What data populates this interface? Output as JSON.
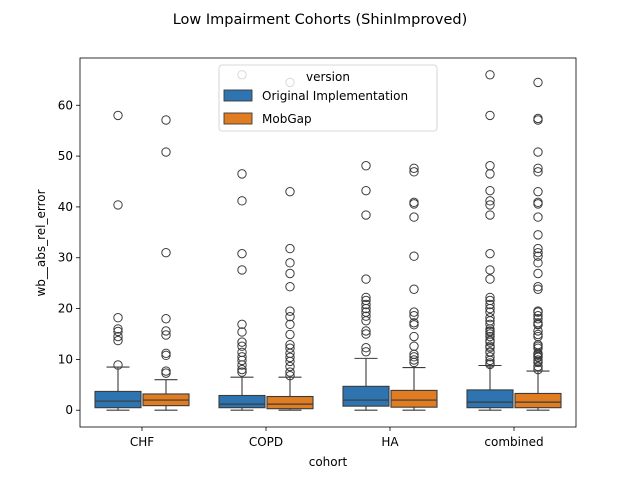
{
  "colors": {
    "original": "#2d74b0",
    "mobgap": "#e07c22",
    "outline": "#3b3b3b",
    "axis": "#000000",
    "background": "#ffffff"
  },
  "chart_data": {
    "type": "box",
    "title": "Low Impairment Cohorts (ShinImproved)",
    "xlabel": "cohort",
    "ylabel": "wb__abs_rel_error",
    "categories": [
      "CHF",
      "COPD",
      "HA",
      "combined"
    ],
    "ylim": [
      -3.3,
      69.3
    ],
    "yticks": [
      0,
      10,
      20,
      30,
      40,
      50,
      60
    ],
    "grid": false,
    "legend": {
      "title": "version",
      "placement": "top-center",
      "entries": [
        "Original Implementation",
        "MobGap"
      ]
    },
    "series": [
      {
        "name": "Original Implementation",
        "boxes": [
          {
            "category": "CHF",
            "whislo": 0.0,
            "q1": 0.5,
            "med": 1.8,
            "q3": 3.7,
            "whishi": 8.5,
            "fliers": [
              58.0,
              40.4,
              18.2,
              16.0,
              15.5,
              14.5,
              13.7,
              8.9
            ]
          },
          {
            "category": "COPD",
            "whislo": 0.0,
            "q1": 0.5,
            "med": 1.2,
            "q3": 2.9,
            "whishi": 6.5,
            "fliers": [
              66.0,
              46.5,
              41.2,
              30.8,
              27.6,
              16.9,
              15.4,
              13.4,
              12.6,
              11.4,
              10.5,
              9.8,
              8.9,
              8.0,
              7.5
            ]
          },
          {
            "category": "HA",
            "whislo": 0.0,
            "q1": 0.8,
            "med": 2.0,
            "q3": 4.7,
            "whishi": 10.2,
            "fliers": [
              48.1,
              43.2,
              38.4,
              25.8,
              22.2,
              21.6,
              20.8,
              20.0,
              19.3,
              18.5,
              17.6,
              15.6,
              15.0,
              12.3,
              11.5
            ]
          },
          {
            "category": "combined",
            "whislo": 0.0,
            "q1": 0.5,
            "med": 1.6,
            "q3": 4.0,
            "whishi": 8.8,
            "fliers": [
              66.0,
              58.0,
              48.1,
              46.5,
              43.2,
              41.2,
              40.4,
              38.4,
              30.8,
              27.6,
              25.8,
              22.2,
              21.6,
              20.8,
              20.0,
              19.3,
              18.2,
              17.6,
              16.9,
              16.0,
              15.6,
              15.4,
              15.0,
              14.5,
              13.7,
              13.4,
              12.6,
              12.3,
              11.5,
              11.4,
              10.5,
              9.8,
              9.3,
              9.0
            ]
          }
        ]
      },
      {
        "name": "MobGap",
        "boxes": [
          {
            "category": "CHF",
            "whislo": 0.0,
            "q1": 0.9,
            "med": 2.0,
            "q3": 3.2,
            "whishi": 6.0,
            "fliers": [
              57.1,
              50.8,
              31.0,
              18.0,
              15.6,
              14.8,
              11.2,
              10.8,
              7.7,
              7.3
            ]
          },
          {
            "category": "COPD",
            "whislo": 0.0,
            "q1": 0.3,
            "med": 1.2,
            "q3": 2.7,
            "whishi": 6.5,
            "fliers": [
              64.5,
              43.0,
              31.8,
              29.0,
              26.9,
              24.3,
              19.5,
              18.4,
              16.9,
              14.9,
              12.9,
              12.2,
              11.2,
              10.4,
              9.6,
              8.6,
              7.5,
              6.8
            ]
          },
          {
            "category": "HA",
            "whislo": 0.0,
            "q1": 0.6,
            "med": 2.0,
            "q3": 3.9,
            "whishi": 8.4,
            "fliers": [
              47.6,
              46.9,
              40.9,
              40.6,
              38.0,
              30.3,
              23.8,
              19.3,
              18.6,
              17.2,
              16.8,
              14.5,
              12.6,
              11.0,
              10.5,
              9.9,
              9.4
            ]
          },
          {
            "category": "combined",
            "whislo": 0.0,
            "q1": 0.5,
            "med": 1.6,
            "q3": 3.3,
            "whishi": 7.7,
            "fliers": [
              64.5,
              57.4,
              57.1,
              50.8,
              47.6,
              46.9,
              43.0,
              40.9,
              40.6,
              38.0,
              34.5,
              31.8,
              31.0,
              30.3,
              29.0,
              26.9,
              24.3,
              23.8,
              19.5,
              19.3,
              18.6,
              18.0,
              17.2,
              16.9,
              16.8,
              15.6,
              14.9,
              14.5,
              12.9,
              12.6,
              12.2,
              11.2,
              11.0,
              10.8,
              10.5,
              10.4,
              9.9,
              9.6,
              9.4,
              8.6,
              8.0
            ]
          }
        ]
      }
    ]
  }
}
